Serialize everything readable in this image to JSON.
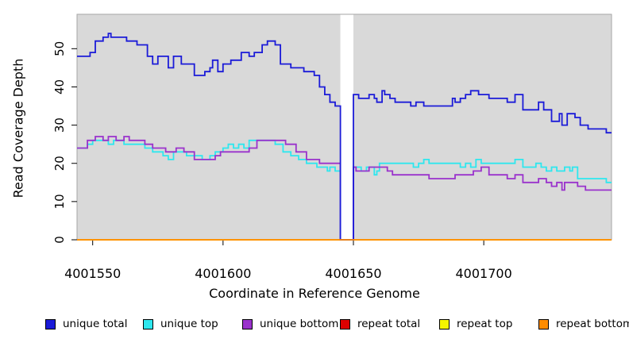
{
  "y_axis": {
    "label": "Read Coverage Depth",
    "ticks": [
      0,
      10,
      20,
      30,
      40,
      50
    ]
  },
  "x_axis": {
    "label": "Coordinate in Reference Genome",
    "ticks": [
      4001550,
      4001600,
      4001650,
      4001700
    ]
  },
  "legend": [
    {
      "label": "unique total",
      "color": "#1b1bd8"
    },
    {
      "label": "unique top",
      "color": "#2ee7ee"
    },
    {
      "label": "unique bottom",
      "color": "#9a32cc"
    },
    {
      "label": "repeat total",
      "color": "#dd0000"
    },
    {
      "label": "repeat top",
      "color": "#f5f500"
    },
    {
      "label": "repeat bottom",
      "color": "#ff8c00"
    }
  ],
  "chart_data": {
    "type": "line",
    "step": true,
    "title": "",
    "xlabel": "Coordinate in Reference Genome",
    "ylabel": "Read Coverage Depth",
    "xlim": [
      4001544,
      4001749
    ],
    "ylim": [
      0,
      59
    ],
    "x_ticks": [
      4001550,
      4001600,
      4001650,
      4001700
    ],
    "y_ticks": [
      0,
      10,
      20,
      30,
      40,
      50
    ],
    "grid": false,
    "legend_position": "bottom",
    "panel_background": "#d9d9d9",
    "gap_region": {
      "x_start": 4001645,
      "x_end": 4001650,
      "fill": "#ffffff",
      "note": "white no-data band; coverage drops to 0 at its edges"
    },
    "series": [
      {
        "name": "unique total",
        "color": "#1b1bd8",
        "points": [
          [
            4001544,
            48
          ],
          [
            4001549,
            49
          ],
          [
            4001551,
            52
          ],
          [
            4001554,
            53
          ],
          [
            4001556,
            54
          ],
          [
            4001557,
            53
          ],
          [
            4001563,
            52
          ],
          [
            4001567,
            51
          ],
          [
            4001571,
            48
          ],
          [
            4001573,
            46
          ],
          [
            4001575,
            48
          ],
          [
            4001579,
            45
          ],
          [
            4001581,
            48
          ],
          [
            4001584,
            46
          ],
          [
            4001589,
            43
          ],
          [
            4001593,
            44
          ],
          [
            4001595,
            45
          ],
          [
            4001596,
            47
          ],
          [
            4001598,
            44
          ],
          [
            4001600,
            46
          ],
          [
            4001603,
            47
          ],
          [
            4001607,
            49
          ],
          [
            4001610,
            48
          ],
          [
            4001612,
            49
          ],
          [
            4001615,
            51
          ],
          [
            4001617,
            52
          ],
          [
            4001620,
            51
          ],
          [
            4001622,
            46
          ],
          [
            4001626,
            45
          ],
          [
            4001631,
            44
          ],
          [
            4001635,
            43
          ],
          [
            4001637,
            40
          ],
          [
            4001639,
            38
          ],
          [
            4001641,
            36
          ],
          [
            4001643,
            35
          ],
          [
            4001645,
            0
          ],
          [
            4001650,
            38
          ],
          [
            4001652,
            37
          ],
          [
            4001656,
            38
          ],
          [
            4001658,
            37
          ],
          [
            4001659,
            36
          ],
          [
            4001661,
            39
          ],
          [
            4001662,
            38
          ],
          [
            4001664,
            37
          ],
          [
            4001666,
            36
          ],
          [
            4001672,
            35
          ],
          [
            4001674,
            36
          ],
          [
            4001677,
            35
          ],
          [
            4001688,
            37
          ],
          [
            4001689,
            36
          ],
          [
            4001691,
            37
          ],
          [
            4001693,
            38
          ],
          [
            4001695,
            39
          ],
          [
            4001698,
            38
          ],
          [
            4001702,
            37
          ],
          [
            4001709,
            36
          ],
          [
            4001712,
            38
          ],
          [
            4001715,
            34
          ],
          [
            4001721,
            36
          ],
          [
            4001723,
            34
          ],
          [
            4001726,
            31
          ],
          [
            4001729,
            33
          ],
          [
            4001730,
            30
          ],
          [
            4001732,
            33
          ],
          [
            4001735,
            32
          ],
          [
            4001737,
            30
          ],
          [
            4001740,
            29
          ],
          [
            4001747,
            28
          ]
        ]
      },
      {
        "name": "unique top",
        "color": "#2ee7ee",
        "points": [
          [
            4001544,
            24
          ],
          [
            4001548,
            25
          ],
          [
            4001550,
            26
          ],
          [
            4001556,
            25
          ],
          [
            4001558,
            26
          ],
          [
            4001562,
            25
          ],
          [
            4001570,
            24
          ],
          [
            4001573,
            23
          ],
          [
            4001577,
            22
          ],
          [
            4001579,
            21
          ],
          [
            4001581,
            23
          ],
          [
            4001586,
            22
          ],
          [
            4001592,
            21
          ],
          [
            4001595,
            22
          ],
          [
            4001597,
            23
          ],
          [
            4001600,
            24
          ],
          [
            4001602,
            25
          ],
          [
            4001604,
            24
          ],
          [
            4001606,
            25
          ],
          [
            4001608,
            24
          ],
          [
            4001610,
            26
          ],
          [
            4001620,
            25
          ],
          [
            4001623,
            23
          ],
          [
            4001626,
            22
          ],
          [
            4001629,
            21
          ],
          [
            4001632,
            20
          ],
          [
            4001636,
            19
          ],
          [
            4001640,
            18
          ],
          [
            4001641,
            19
          ],
          [
            4001643,
            18
          ],
          [
            4001645,
            0
          ],
          [
            4001650,
            19
          ],
          [
            4001653,
            18
          ],
          [
            4001655,
            19
          ],
          [
            4001658,
            17
          ],
          [
            4001659,
            18
          ],
          [
            4001660,
            20
          ],
          [
            4001673,
            19
          ],
          [
            4001675,
            20
          ],
          [
            4001677,
            21
          ],
          [
            4001679,
            20
          ],
          [
            4001691,
            19
          ],
          [
            4001693,
            20
          ],
          [
            4001695,
            19
          ],
          [
            4001697,
            21
          ],
          [
            4001699,
            20
          ],
          [
            4001712,
            21
          ],
          [
            4001715,
            19
          ],
          [
            4001720,
            20
          ],
          [
            4001722,
            19
          ],
          [
            4001724,
            18
          ],
          [
            4001726,
            19
          ],
          [
            4001728,
            18
          ],
          [
            4001731,
            19
          ],
          [
            4001733,
            18
          ],
          [
            4001734,
            19
          ],
          [
            4001736,
            16
          ],
          [
            4001747,
            15
          ]
        ]
      },
      {
        "name": "unique bottom",
        "color": "#9a32cc",
        "points": [
          [
            4001544,
            24
          ],
          [
            4001548,
            26
          ],
          [
            4001551,
            27
          ],
          [
            4001554,
            26
          ],
          [
            4001556,
            27
          ],
          [
            4001559,
            26
          ],
          [
            4001562,
            27
          ],
          [
            4001564,
            26
          ],
          [
            4001570,
            25
          ],
          [
            4001573,
            24
          ],
          [
            4001578,
            23
          ],
          [
            4001582,
            24
          ],
          [
            4001585,
            23
          ],
          [
            4001589,
            21
          ],
          [
            4001597,
            22
          ],
          [
            4001599,
            23
          ],
          [
            4001610,
            24
          ],
          [
            4001613,
            26
          ],
          [
            4001624,
            25
          ],
          [
            4001628,
            23
          ],
          [
            4001632,
            21
          ],
          [
            4001637,
            20
          ],
          [
            4001645,
            0
          ],
          [
            4001650,
            19
          ],
          [
            4001651,
            18
          ],
          [
            4001656,
            19
          ],
          [
            4001663,
            18
          ],
          [
            4001665,
            17
          ],
          [
            4001679,
            16
          ],
          [
            4001689,
            17
          ],
          [
            4001696,
            18
          ],
          [
            4001699,
            19
          ],
          [
            4001702,
            17
          ],
          [
            4001709,
            16
          ],
          [
            4001712,
            17
          ],
          [
            4001715,
            15
          ],
          [
            4001721,
            16
          ],
          [
            4001724,
            15
          ],
          [
            4001726,
            14
          ],
          [
            4001728,
            15
          ],
          [
            4001730,
            13
          ],
          [
            4001731,
            15
          ],
          [
            4001736,
            14
          ],
          [
            4001739,
            13
          ]
        ]
      },
      {
        "name": "repeat total",
        "color": "#dd0000",
        "points": [
          [
            4001544,
            0
          ]
        ]
      },
      {
        "name": "repeat top",
        "color": "#f5f500",
        "points": [
          [
            4001544,
            0
          ]
        ]
      },
      {
        "name": "repeat bottom",
        "color": "#ff8c00",
        "points": [
          [
            4001544,
            0
          ]
        ]
      }
    ]
  }
}
